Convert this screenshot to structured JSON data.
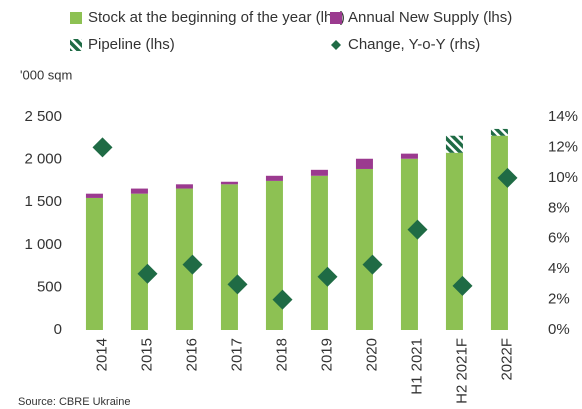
{
  "chart_data": {
    "type": "bar",
    "y_axis_label": "'000 sqm",
    "source": "Source: CBRE Ukraine",
    "categories": [
      "2014",
      "2015",
      "2016",
      "2017",
      "2018",
      "2019",
      "2020",
      "H1 2021",
      "H2 2021F",
      "2022F"
    ],
    "series": [
      {
        "name": "Stock at the beginning of the year (lhs)",
        "color": "#8dc153",
        "kind": "bar",
        "values": [
          1550,
          1600,
          1660,
          1710,
          1750,
          1810,
          1890,
          2010,
          2080,
          2280
        ]
      },
      {
        "name": "Annual New Supply (lhs)",
        "color": "#9b3a8f",
        "kind": "bar",
        "values": [
          50,
          60,
          50,
          30,
          60,
          70,
          120,
          60,
          null,
          null
        ]
      },
      {
        "name": "Pipeline (lhs)",
        "color": "#1f6b45",
        "kind": "bar",
        "hatched": true,
        "values": [
          null,
          null,
          null,
          null,
          null,
          null,
          null,
          null,
          200,
          80
        ]
      },
      {
        "name": "Change, Y-o-Y (rhs)",
        "color": "#1f6b45",
        "kind": "marker",
        "axis": "y2",
        "values": [
          12.0,
          3.7,
          4.3,
          3.0,
          2.0,
          3.5,
          4.3,
          6.6,
          2.9,
          10.0
        ]
      }
    ],
    "ylim": [
      0,
      2500
    ],
    "yticks": [
      0,
      500,
      {
        "value": 1000,
        "label": "1 000"
      },
      {
        "value": 1500,
        "label": "1 500"
      },
      {
        "value": 2000,
        "label": "2 000"
      },
      {
        "value": 2500,
        "label": "2 500"
      }
    ],
    "y2lim": [
      0,
      14
    ],
    "y2ticks": [
      {
        "value": 0,
        "label": "0%"
      },
      {
        "value": 2,
        "label": "2%"
      },
      {
        "value": 4,
        "label": "4%"
      },
      {
        "value": 6,
        "label": "6%"
      },
      {
        "value": 8,
        "label": "8%"
      },
      {
        "value": 10,
        "label": "10%"
      },
      {
        "value": 12,
        "label": "12%"
      },
      {
        "value": 14,
        "label": "14%"
      }
    ],
    "grid": false
  }
}
